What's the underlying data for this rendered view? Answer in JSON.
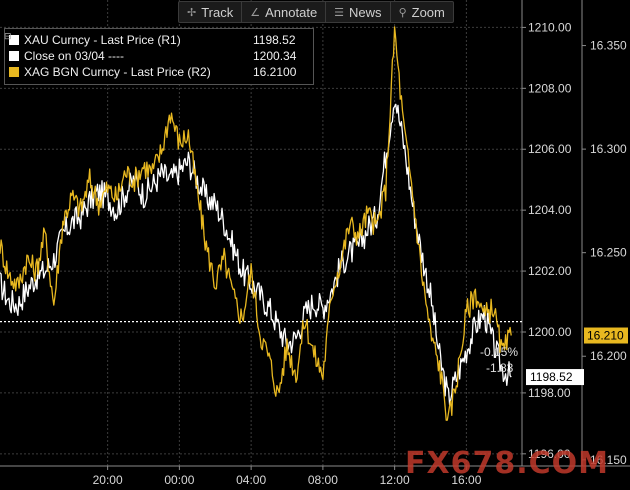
{
  "toolbar": {
    "items": [
      {
        "label": "Track",
        "icon": "plus-arrows-icon"
      },
      {
        "label": "Annotate",
        "icon": "pencil-icon"
      },
      {
        "label": "News",
        "icon": "news-icon"
      },
      {
        "label": "Zoom",
        "icon": "magnifier-icon"
      }
    ]
  },
  "legend": {
    "rows": [
      {
        "name": "XAU Curncy - Last Price (R1)",
        "value": "1198.52",
        "color": "#ffffff"
      },
      {
        "name": "Close on 03/04 ----",
        "value": "1200.34",
        "color": "#ffffff"
      },
      {
        "name": "XAG BGN Curncy - Last Price (R2)",
        "value": "16.2100",
        "color": "#e8b820"
      }
    ]
  },
  "watermark": "FX678.COM",
  "chart_data": {
    "type": "line",
    "x_tick_labels": [
      "20:00",
      "00:00",
      "04:00",
      "08:00",
      "12:00",
      "16:00"
    ],
    "x_ticks": [
      1,
      5,
      9,
      13,
      17,
      21
    ],
    "xlim": [
      -5,
      24.1
    ],
    "y1_axis": {
      "side": "right",
      "ylim": [
        1195.6,
        1210.9
      ],
      "ticks": [
        1196.0,
        1198.0,
        1200.0,
        1202.0,
        1204.0,
        1206.0,
        1208.0,
        1210.0
      ],
      "tick_labels": [
        "1196.00",
        "1198.00",
        "1200.00",
        "1202.00",
        "1204.00",
        "1206.00",
        "1208.00",
        "1210.00"
      ]
    },
    "y2_axis": {
      "side": "right",
      "ylim": [
        16.147,
        16.372
      ],
      "ticks": [
        16.15,
        16.2,
        16.25,
        16.3,
        16.35
      ],
      "tick_labels": [
        "16.150",
        "16.200",
        "16.250",
        "16.300",
        "16.350"
      ]
    },
    "grid": true,
    "reference_line": {
      "name": "Close on 03/04",
      "value": 1200.34,
      "axis": "y1"
    },
    "series": [
      {
        "name": "XAU Curncy - Last Price (R1)",
        "axis": "y1",
        "color": "#ffffff",
        "last_label": "1198.52",
        "points": [
          [
            -5,
            1201.6
          ],
          [
            -4.5,
            1201.0
          ],
          [
            -4,
            1200.9
          ],
          [
            -3.5,
            1201.4
          ],
          [
            -3,
            1201.8
          ],
          [
            -2.5,
            1202.0
          ],
          [
            -2,
            1202.4
          ],
          [
            -1.5,
            1203.2
          ],
          [
            -1,
            1203.6
          ],
          [
            -0.5,
            1203.8
          ],
          [
            0,
            1204.3
          ],
          [
            0.5,
            1204.6
          ],
          [
            1,
            1204.4
          ],
          [
            1.5,
            1204.0
          ],
          [
            2,
            1204.6
          ],
          [
            2.5,
            1205.0
          ],
          [
            3,
            1204.5
          ],
          [
            3.5,
            1204.8
          ],
          [
            4,
            1205.2
          ],
          [
            4.5,
            1205.0
          ],
          [
            5,
            1205.3
          ],
          [
            5.5,
            1205.6
          ],
          [
            6,
            1205.0
          ],
          [
            6.5,
            1204.4
          ],
          [
            7,
            1204.2
          ],
          [
            7.5,
            1203.6
          ],
          [
            8,
            1202.8
          ],
          [
            8.5,
            1202.0
          ],
          [
            9,
            1201.6
          ],
          [
            9.5,
            1201.2
          ],
          [
            10,
            1200.8
          ],
          [
            10.5,
            1200.2
          ],
          [
            11,
            1199.6
          ],
          [
            11.5,
            1199.8
          ],
          [
            12,
            1200.6
          ],
          [
            12.5,
            1201.0
          ],
          [
            13,
            1200.8
          ],
          [
            13.5,
            1201.4
          ],
          [
            14,
            1202.2
          ],
          [
            14.5,
            1202.6
          ],
          [
            15,
            1202.8
          ],
          [
            15.5,
            1203.4
          ],
          [
            16,
            1203.8
          ],
          [
            16.5,
            1205.8
          ],
          [
            17,
            1207.8
          ],
          [
            17.5,
            1206.2
          ],
          [
            18,
            1204.2
          ],
          [
            18.5,
            1202.6
          ],
          [
            19,
            1201.2
          ],
          [
            19.5,
            1199.2
          ],
          [
            20,
            1197.8
          ],
          [
            20.5,
            1198.6
          ],
          [
            21,
            1199.4
          ],
          [
            21.5,
            1200.2
          ],
          [
            22,
            1200.6
          ],
          [
            22.5,
            1199.6
          ],
          [
            23,
            1198.8
          ],
          [
            23.5,
            1198.52
          ]
        ]
      },
      {
        "name": "XAG BGN Curncy - Last Price (R2)",
        "axis": "y2",
        "color": "#e8b820",
        "last_label": "16.210",
        "points": [
          [
            -5,
            16.254
          ],
          [
            -4.5,
            16.239
          ],
          [
            -4,
            16.234
          ],
          [
            -3.5,
            16.247
          ],
          [
            -3,
            16.241
          ],
          [
            -2.5,
            16.259
          ],
          [
            -2,
            16.225
          ],
          [
            -1.5,
            16.265
          ],
          [
            -1,
            16.277
          ],
          [
            -0.5,
            16.271
          ],
          [
            0,
            16.285
          ],
          [
            0.5,
            16.274
          ],
          [
            1,
            16.281
          ],
          [
            1.5,
            16.276
          ],
          [
            2,
            16.289
          ],
          [
            2.5,
            16.285
          ],
          [
            3,
            16.292
          ],
          [
            3.5,
            16.289
          ],
          [
            4,
            16.299
          ],
          [
            4.5,
            16.318
          ],
          [
            5,
            16.303
          ],
          [
            5.5,
            16.307
          ],
          [
            6,
            16.279
          ],
          [
            6.5,
            16.253
          ],
          [
            7,
            16.235
          ],
          [
            7.5,
            16.247
          ],
          [
            8,
            16.229
          ],
          [
            8.5,
            16.218
          ],
          [
            9,
            16.241
          ],
          [
            9.5,
            16.211
          ],
          [
            10,
            16.199
          ],
          [
            10.5,
            16.181
          ],
          [
            11,
            16.205
          ],
          [
            11.5,
            16.191
          ],
          [
            12,
            16.218
          ],
          [
            12.5,
            16.201
          ],
          [
            13,
            16.191
          ],
          [
            13.5,
            16.231
          ],
          [
            14,
            16.246
          ],
          [
            14.5,
            16.264
          ],
          [
            15,
            16.258
          ],
          [
            15.5,
            16.269
          ],
          [
            16,
            16.262
          ],
          [
            16.5,
            16.281
          ],
          [
            17,
            16.357
          ],
          [
            17.5,
            16.311
          ],
          [
            18,
            16.279
          ],
          [
            18.5,
            16.241
          ],
          [
            19,
            16.211
          ],
          [
            19.5,
            16.195
          ],
          [
            20,
            16.168
          ],
          [
            20.5,
            16.191
          ],
          [
            21,
            16.221
          ],
          [
            21.5,
            16.231
          ],
          [
            22,
            16.219
          ],
          [
            22.5,
            16.224
          ],
          [
            23,
            16.201
          ],
          [
            23.5,
            16.21
          ]
        ]
      }
    ],
    "annotations": [
      {
        "text": "-0.15%"
      },
      {
        "text": "-1.83"
      }
    ]
  }
}
